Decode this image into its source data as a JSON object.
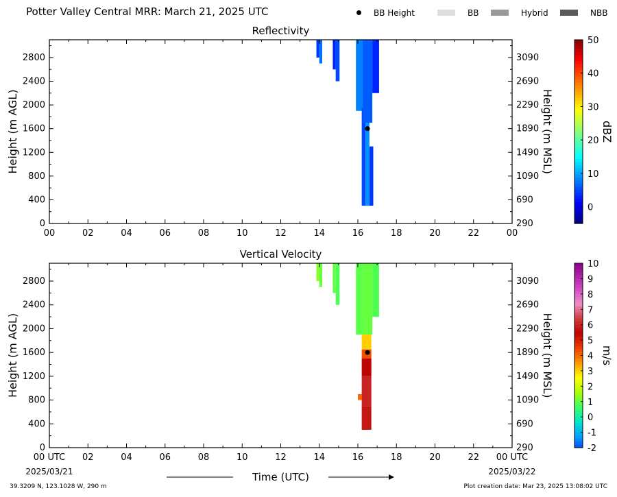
{
  "page": {
    "title": "Potter Valley Central MRR:  March 21, 2025 UTC",
    "location": "39.3209 N, 123.1028 W, 290 m",
    "creation": "Plot creation date: Mar 23, 2025 13:08:02 UTC"
  },
  "legend": {
    "items": [
      {
        "label": "BB Height",
        "kind": "dot",
        "color": "#000000"
      },
      {
        "label": "BB",
        "kind": "swatch",
        "color": "#dedede"
      },
      {
        "label": "Hybrid",
        "kind": "swatch",
        "color": "#9a9a9a"
      },
      {
        "label": "NBB",
        "kind": "swatch",
        "color": "#5a5a5a"
      }
    ]
  },
  "chart_data": [
    {
      "type": "heatmap",
      "title": "Reflectivity",
      "ylabel": "Height (m AGL)",
      "ylabel_right": "Height (m MSL)",
      "xlim": [
        0,
        24
      ],
      "ylim": [
        0,
        3100
      ],
      "x_ticks": [
        "00",
        "02",
        "04",
        "06",
        "08",
        "10",
        "12",
        "14",
        "16",
        "18",
        "20",
        "22",
        "00"
      ],
      "y_ticks": [
        0,
        400,
        800,
        1200,
        1600,
        2000,
        2400,
        2800
      ],
      "y_ticks_right": [
        290,
        690,
        1090,
        1490,
        1890,
        2290,
        2690,
        3090
      ],
      "colorbar": {
        "label": "dBZ",
        "min": -5,
        "max": 50,
        "ticks": [
          0,
          10,
          20,
          30,
          40,
          50
        ]
      },
      "bright_band_height": {
        "time": 16.5,
        "height": 1600
      },
      "echo_columns": [
        {
          "t0": 13.85,
          "t1": 14.0,
          "bottom": 2800,
          "top": 3100,
          "value": 4
        },
        {
          "t0": 14.0,
          "t1": 14.15,
          "bottom": 2700,
          "top": 3100,
          "value": 7
        },
        {
          "t0": 14.7,
          "t1": 14.85,
          "bottom": 2600,
          "top": 3100,
          "value": 3
        },
        {
          "t0": 14.85,
          "t1": 15.05,
          "bottom": 2400,
          "top": 3100,
          "value": 5
        },
        {
          "t0": 15.9,
          "t1": 16.25,
          "bottom": 1900,
          "top": 3100,
          "value": 8
        },
        {
          "t0": 16.2,
          "t1": 16.4,
          "bottom": 300,
          "top": 1950,
          "value": 5
        },
        {
          "t0": 16.4,
          "t1": 16.6,
          "bottom": 300,
          "top": 1700,
          "value": 9
        },
        {
          "t0": 16.25,
          "t1": 16.75,
          "bottom": 1700,
          "top": 3100,
          "value": 6
        },
        {
          "t0": 16.6,
          "t1": 16.8,
          "bottom": 300,
          "top": 1300,
          "value": 4
        },
        {
          "t0": 16.75,
          "t1": 17.1,
          "bottom": 2200,
          "top": 3100,
          "value": 3
        }
      ]
    },
    {
      "type": "heatmap",
      "title": "Vertical Velocity",
      "ylabel": "Height (m AGL)",
      "ylabel_right": "Height (m MSL)",
      "xlabel": "Time (UTC)",
      "xlim": [
        0,
        24
      ],
      "ylim": [
        0,
        3100
      ],
      "x_ticks": [
        "00 UTC",
        "02",
        "04",
        "06",
        "08",
        "10",
        "12",
        "14",
        "16",
        "18",
        "20",
        "22",
        "00 UTC"
      ],
      "x_dates": {
        "start": "2025/03/21",
        "end": "2025/03/22"
      },
      "y_ticks": [
        0,
        400,
        800,
        1200,
        1600,
        2000,
        2400,
        2800
      ],
      "y_ticks_right": [
        290,
        690,
        1090,
        1490,
        1890,
        2290,
        2690,
        3090
      ],
      "colorbar": {
        "label": "m/s",
        "min": -2,
        "max": 10,
        "ticks": [
          -2,
          -1,
          0,
          1,
          2,
          3,
          4,
          5,
          6,
          7,
          8,
          9,
          10
        ]
      },
      "bright_band_height": {
        "time": 16.5,
        "height": 1600
      },
      "echo_columns": [
        {
          "t0": 13.85,
          "t1": 14.0,
          "bottom": 2800,
          "top": 3100,
          "value": 1.3
        },
        {
          "t0": 14.0,
          "t1": 14.15,
          "bottom": 2700,
          "top": 3100,
          "value": 1.0
        },
        {
          "t0": 14.7,
          "t1": 14.85,
          "bottom": 2600,
          "top": 3100,
          "value": 1.0
        },
        {
          "t0": 14.85,
          "t1": 15.05,
          "bottom": 2400,
          "top": 3100,
          "value": 0.8
        },
        {
          "t0": 15.9,
          "t1": 16.25,
          "bottom": 1900,
          "top": 3100,
          "value": 0.9
        },
        {
          "t0": 16.25,
          "t1": 16.75,
          "bottom": 1900,
          "top": 3100,
          "value": 1.0
        },
        {
          "t0": 16.75,
          "t1": 17.1,
          "bottom": 2200,
          "top": 3100,
          "value": 0.8
        },
        {
          "t0": 16.2,
          "t1": 16.7,
          "bottom": 1650,
          "top": 1900,
          "value": 3.0
        },
        {
          "t0": 16.2,
          "t1": 16.7,
          "bottom": 1500,
          "top": 1650,
          "value": 4.3
        },
        {
          "t0": 16.2,
          "t1": 16.7,
          "bottom": 1200,
          "top": 1500,
          "value": 5.5
        },
        {
          "t0": 16.2,
          "t1": 16.7,
          "bottom": 700,
          "top": 1200,
          "value": 6.0
        },
        {
          "t0": 16.2,
          "t1": 16.7,
          "bottom": 300,
          "top": 700,
          "value": 5.8
        },
        {
          "t0": 16.0,
          "t1": 16.2,
          "bottom": 800,
          "top": 900,
          "value": 4.0
        }
      ]
    }
  ]
}
